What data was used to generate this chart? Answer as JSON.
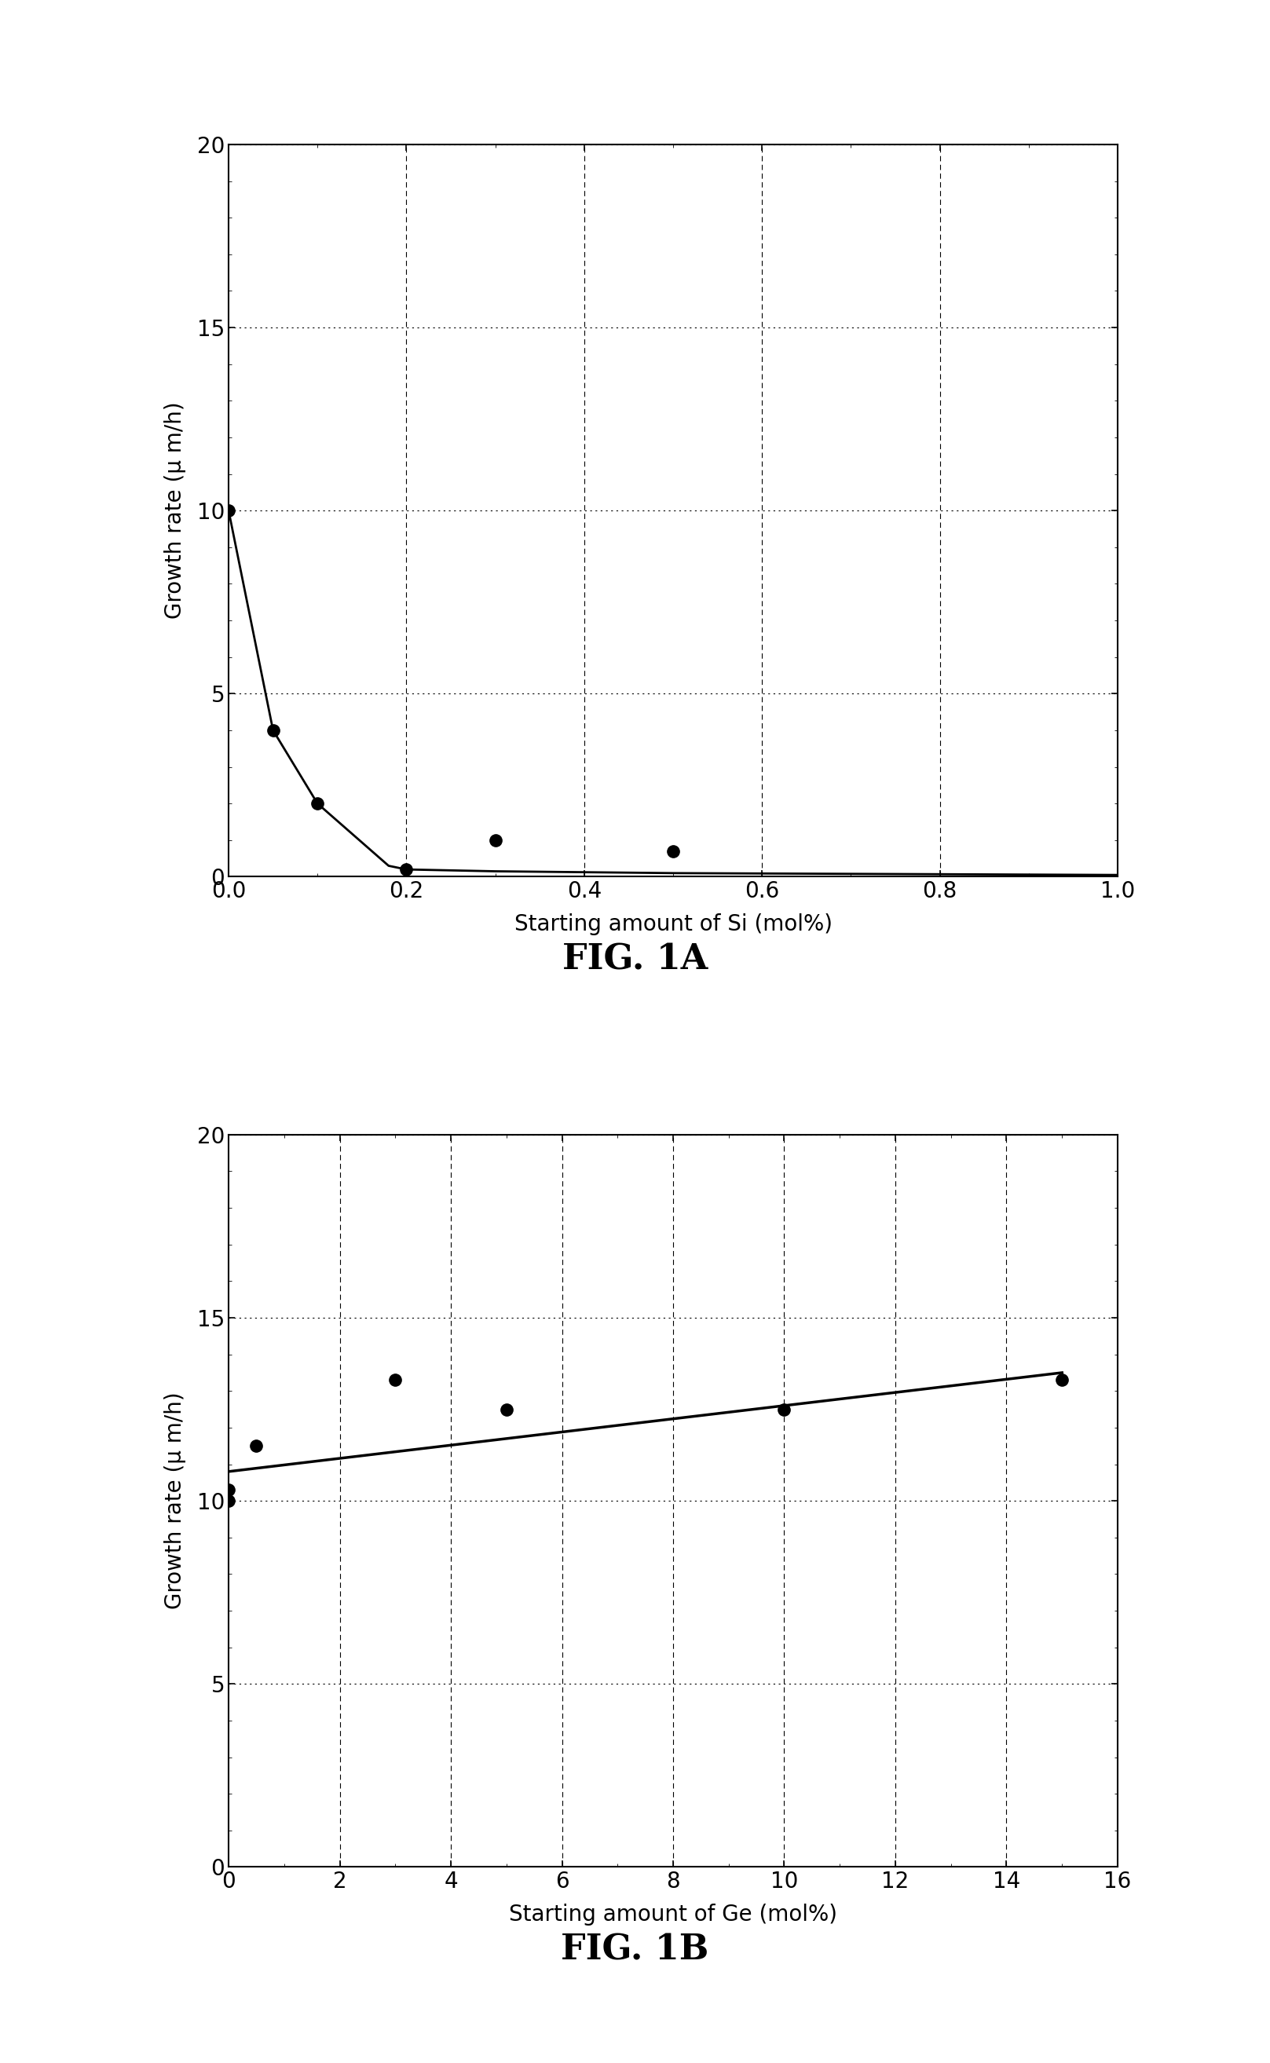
{
  "fig1a": {
    "scatter_x": [
      0.0,
      0.05,
      0.1,
      0.2,
      0.3,
      0.5
    ],
    "scatter_y": [
      10.0,
      4.0,
      2.0,
      0.2,
      1.0,
      0.7
    ],
    "curve_x": [
      0.0,
      0.05,
      0.1,
      0.18,
      0.2,
      0.3,
      0.5,
      1.0
    ],
    "curve_y": [
      10.0,
      4.0,
      2.0,
      0.3,
      0.2,
      0.15,
      0.1,
      0.05
    ],
    "xlabel": "Starting amount of Si (mol%)",
    "ylabel": "Growth rate (μ m/h)",
    "xlim": [
      0,
      1
    ],
    "ylim": [
      0,
      20
    ],
    "xticks": [
      0,
      0.2,
      0.4,
      0.6,
      0.8,
      1.0
    ],
    "yticks": [
      0,
      5,
      10,
      15,
      20
    ],
    "title": "FIG. 1A"
  },
  "fig1b": {
    "scatter_x": [
      0.0,
      0.0,
      0.5,
      3.0,
      5.0,
      10.0,
      15.0
    ],
    "scatter_y": [
      10.0,
      10.3,
      11.5,
      13.3,
      12.5,
      12.5,
      13.3
    ],
    "line_x": [
      0,
      15
    ],
    "line_y": [
      10.8,
      13.5
    ],
    "xlabel": "Starting amount of Ge (mol%)",
    "ylabel": "Growth rate (μ m/h)",
    "xlim": [
      0,
      16
    ],
    "ylim": [
      0,
      20
    ],
    "xticks": [
      0,
      2,
      4,
      6,
      8,
      10,
      12,
      14,
      16
    ],
    "yticks": [
      0,
      5,
      10,
      15,
      20
    ],
    "title": "FIG. 1B"
  },
  "background_color": "#ffffff",
  "marker_color": "#000000",
  "line_color": "#000000",
  "marker_size": 11,
  "fig_title_fontsize": 32,
  "label_fontsize": 20,
  "tick_fontsize": 20
}
